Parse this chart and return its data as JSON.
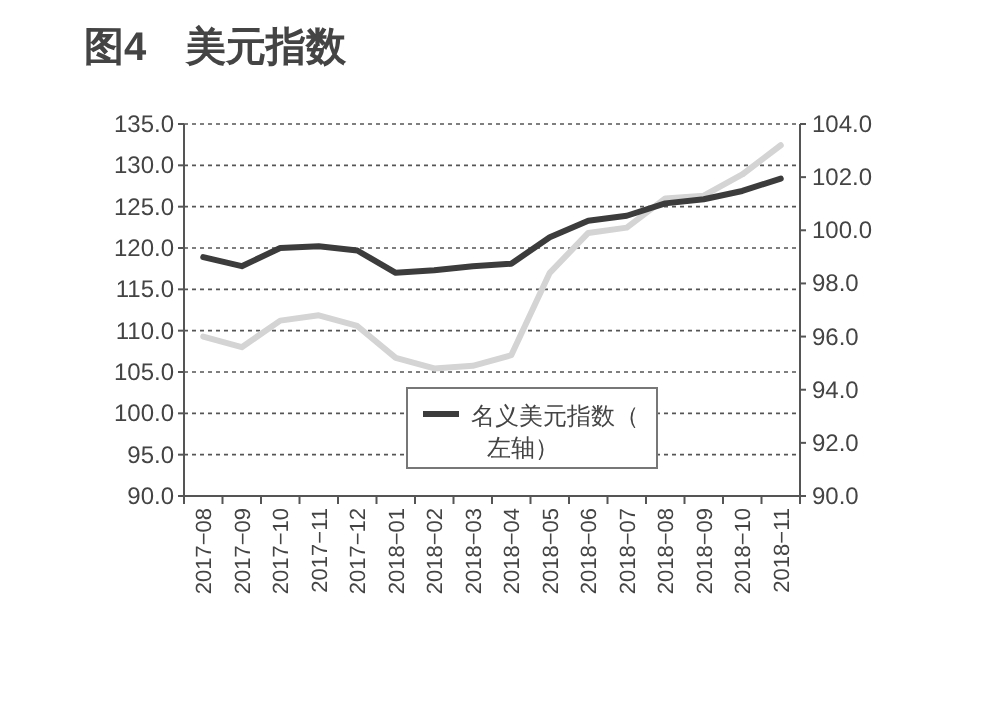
{
  "chart_data": {
    "type": "line",
    "title": "图4　美元指数",
    "categories": [
      "2017−08",
      "2017−09",
      "2017−10",
      "2017−11",
      "2017−12",
      "2018−01",
      "2018−02",
      "2018−03",
      "2018−04",
      "2018−05",
      "2018−06",
      "2018−07",
      "2018−08",
      "2018−09",
      "2018−10",
      "2018−11"
    ],
    "series": [
      {
        "name": "名义美元指数（左轴）",
        "color": "#3c3c3c",
        "values": [
          118.9,
          117.8,
          120.0,
          120.2,
          119.7,
          117.0,
          117.3,
          117.8,
          118.1,
          121.3,
          123.3,
          123.9,
          125.4,
          125.9,
          126.9,
          128.4
        ]
      },
      {
        "color": "#d4d4d4",
        "axis": "y2",
        "values": [
          96.0,
          95.6,
          96.6,
          96.8,
          96.4,
          95.2,
          94.8,
          94.9,
          95.3,
          98.4,
          99.9,
          100.1,
          101.2,
          101.3,
          102.1,
          103.2
        ]
      }
    ],
    "ylim": [
      90,
      135
    ],
    "yticks": [
      {
        "value": 90,
        "label": "90.0"
      },
      {
        "value": 95,
        "label": "95.0"
      },
      {
        "value": 100,
        "label": "100.0"
      },
      {
        "value": 105,
        "label": "105.0"
      },
      {
        "value": 110,
        "label": "110.0"
      },
      {
        "value": 115,
        "label": "115.0"
      },
      {
        "value": 120,
        "label": "120.0"
      },
      {
        "value": 125,
        "label": "125.0"
      },
      {
        "value": 130,
        "label": "130.0"
      },
      {
        "value": 135,
        "label": "135.0"
      }
    ],
    "y2lim": [
      90,
      104
    ],
    "y2ticks": [
      {
        "value": 90,
        "label": "90.0"
      },
      {
        "value": 92,
        "label": "92.0"
      },
      {
        "value": 94,
        "label": "94.0"
      },
      {
        "value": 96,
        "label": "96.0"
      },
      {
        "value": 98,
        "label": "98.0"
      },
      {
        "value": 100,
        "label": "100.0"
      },
      {
        "value": 102,
        "label": "102.0"
      },
      {
        "value": 104,
        "label": "104.0"
      }
    ],
    "grid": "y",
    "legend": "bottom"
  }
}
